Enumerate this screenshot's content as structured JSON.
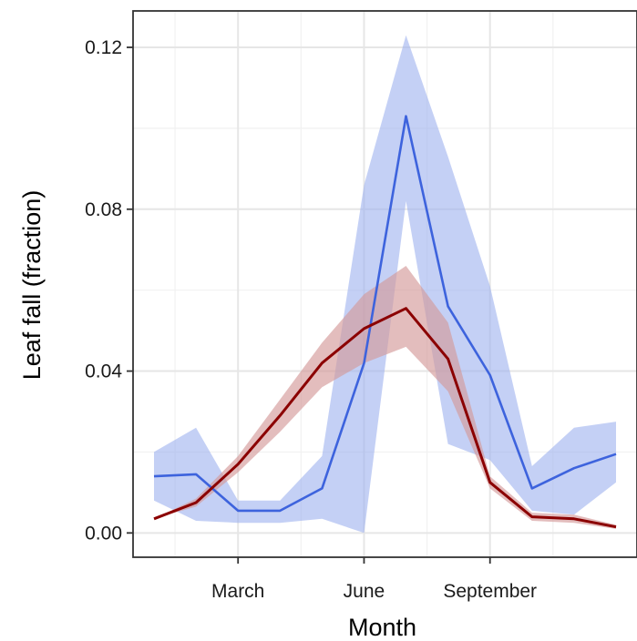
{
  "chart_data": {
    "type": "line",
    "xlabel": "Month",
    "ylabel": "Leaf fall (fraction)",
    "x": [
      1,
      2,
      3,
      4,
      5,
      6,
      7,
      8,
      9,
      10,
      11,
      12
    ],
    "xticks": [
      {
        "value": 3,
        "label": "March"
      },
      {
        "value": 6,
        "label": "June"
      },
      {
        "value": 9,
        "label": "September"
      }
    ],
    "yticks": [
      {
        "value": 0.0,
        "label": "0.00"
      },
      {
        "value": 0.04,
        "label": "0.04"
      },
      {
        "value": 0.08,
        "label": "0.08"
      },
      {
        "value": 0.12,
        "label": "0.12"
      }
    ],
    "xlim": [
      0.5,
      12.5
    ],
    "ylim": [
      -0.006,
      0.129
    ],
    "grid": true,
    "legend": "none",
    "series": [
      {
        "color": "#3d63dd",
        "band_color": "#9db1ee",
        "values": [
          0.014,
          0.0145,
          0.0055,
          0.0055,
          0.011,
          0.042,
          0.103,
          0.056,
          0.039,
          0.011,
          0.016,
          0.0195
        ],
        "lower": [
          0.008,
          0.003,
          0.0025,
          0.0025,
          0.0035,
          0.0,
          0.082,
          0.022,
          0.018,
          0.0055,
          0.0045,
          0.0125
        ],
        "upper": [
          0.02,
          0.026,
          0.008,
          0.008,
          0.019,
          0.086,
          0.123,
          0.093,
          0.061,
          0.0165,
          0.026,
          0.0275
        ]
      },
      {
        "color": "#8b0000",
        "band_color": "#d49a9a",
        "values": [
          0.0035,
          0.0075,
          0.017,
          0.029,
          0.042,
          0.0505,
          0.0555,
          0.043,
          0.0125,
          0.004,
          0.0035,
          0.0015
        ],
        "lower": [
          0.0035,
          0.0065,
          0.015,
          0.025,
          0.036,
          0.042,
          0.046,
          0.035,
          0.011,
          0.003,
          0.0025,
          0.001
        ],
        "upper": [
          0.0035,
          0.0085,
          0.019,
          0.033,
          0.047,
          0.059,
          0.066,
          0.052,
          0.014,
          0.005,
          0.0045,
          0.002
        ]
      }
    ]
  }
}
